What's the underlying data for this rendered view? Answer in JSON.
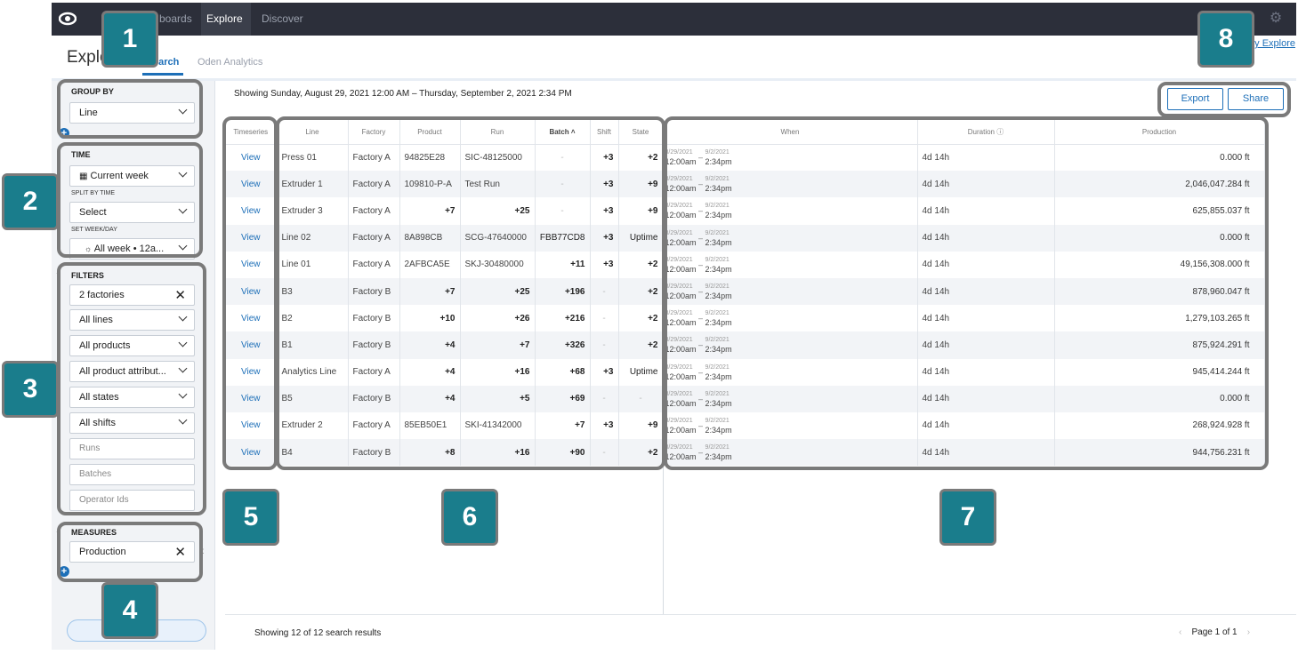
{
  "nav": {
    "items": [
      "Dashboards",
      "Explore",
      "Discover"
    ],
    "items_visible": [
      "boards",
      "Explore",
      "Discover"
    ]
  },
  "header": {
    "title": "Explore",
    "title_visible": "Explo",
    "tabs": [
      "Search",
      "Oden Analytics"
    ],
    "tabs_visible": [
      "earch",
      "Oden Analytics"
    ],
    "help_link": "y Explore"
  },
  "sidebar": {
    "group_by": {
      "title": "GROUP BY",
      "value": "Line"
    },
    "time": {
      "title": "TIME",
      "range": "Current week",
      "split_label": "SPLIT BY TIME",
      "split_value": "Select",
      "weekday_label": "SET WEEK/DAY",
      "weekday_value": "All week • 12a..."
    },
    "filters": {
      "title": "FILTERS",
      "factories": "2 factories",
      "lines": "All lines",
      "products": "All products",
      "product_attributes": "All product attribut...",
      "states": "All states",
      "shifts": "All shifts",
      "runs_placeholder": "Runs",
      "batches_placeholder": "Batches",
      "operators_placeholder": "Operator Ids"
    },
    "measures": {
      "title": "MEASURES",
      "value": "Production"
    }
  },
  "main": {
    "showing": "Showing Sunday, August 29, 2021 12:00 AM – Thursday, September 2, 2021 2:34 PM",
    "export": "Export",
    "share": "Share",
    "columns": [
      "Timeseries",
      "Line",
      "Factory",
      "Product",
      "Run",
      "Batch ˄",
      "Shift",
      "State",
      "When",
      "Duration ⓘ",
      "Production"
    ],
    "rows": [
      [
        "View",
        "Press 01",
        "Factory A",
        "94825E28",
        "SIC-48125000",
        "-",
        "+3",
        "+2",
        "8/29/2021",
        "12:00am",
        "9/2/2021",
        "2:34pm",
        "4d 14h",
        "0.000 ft"
      ],
      [
        "View",
        "Extruder 1",
        "Factory A",
        "109810-P-A",
        "Test Run",
        "-",
        "+3",
        "+9",
        "8/29/2021",
        "12:00am",
        "9/2/2021",
        "2:34pm",
        "4d 14h",
        "2,046,047.284 ft"
      ],
      [
        "View",
        "Extruder 3",
        "Factory A",
        "+7",
        "+25",
        "-",
        "+3",
        "+9",
        "8/29/2021",
        "12:00am",
        "9/2/2021",
        "2:34pm",
        "4d 14h",
        "625,855.037 ft"
      ],
      [
        "View",
        "Line 02",
        "Factory A",
        "8A898CB",
        "SCG-47640000",
        "FBB77CD8",
        "+3",
        "Uptime",
        "8/29/2021",
        "12:00am",
        "9/2/2021",
        "2:34pm",
        "4d 14h",
        "0.000 ft"
      ],
      [
        "View",
        "Line 01",
        "Factory A",
        "2AFBCA5E",
        "SKJ-30480000",
        "+11",
        "+3",
        "+2",
        "8/29/2021",
        "12:00am",
        "9/2/2021",
        "2:34pm",
        "4d 14h",
        "49,156,308.000 ft"
      ],
      [
        "View",
        "B3",
        "Factory B",
        "+7",
        "+25",
        "+196",
        "-",
        "+2",
        "8/29/2021",
        "12:00am",
        "9/2/2021",
        "2:34pm",
        "4d 14h",
        "878,960.047 ft"
      ],
      [
        "View",
        "B2",
        "Factory B",
        "+10",
        "+26",
        "+216",
        "-",
        "+2",
        "8/29/2021",
        "12:00am",
        "9/2/2021",
        "2:34pm",
        "4d 14h",
        "1,279,103.265 ft"
      ],
      [
        "View",
        "B1",
        "Factory B",
        "+4",
        "+7",
        "+326",
        "-",
        "+2",
        "8/29/2021",
        "12:00am",
        "9/2/2021",
        "2:34pm",
        "4d 14h",
        "875,924.291 ft"
      ],
      [
        "View",
        "Analytics Line",
        "Factory A",
        "+4",
        "+16",
        "+68",
        "+3",
        "Uptime",
        "8/29/2021",
        "12:00am",
        "9/2/2021",
        "2:34pm",
        "4d 14h",
        "945,414.244 ft"
      ],
      [
        "View",
        "B5",
        "Factory B",
        "+4",
        "+5",
        "+69",
        "-",
        "-",
        "8/29/2021",
        "12:00am",
        "9/2/2021",
        "2:34pm",
        "4d 14h",
        "0.000 ft"
      ],
      [
        "View",
        "Extruder 2",
        "Factory A",
        "85EB50E1",
        "SKI-41342000",
        "+7",
        "+3",
        "+9",
        "8/29/2021",
        "12:00am",
        "9/2/2021",
        "2:34pm",
        "4d 14h",
        "268,924.928 ft"
      ],
      [
        "View",
        "B4",
        "Factory B",
        "+8",
        "+16",
        "+90",
        "-",
        "+2",
        "8/29/2021",
        "12:00am",
        "9/2/2021",
        "2:34pm",
        "4d 14h",
        "944,756.231 ft"
      ]
    ],
    "result_count": "Showing 12 of 12 search results",
    "page": "Page 1 of 1"
  },
  "callouts": [
    "1",
    "2",
    "3",
    "4",
    "5",
    "6",
    "7",
    "8"
  ],
  "colors": {
    "accent": "#1d6fb8",
    "badge": "#1a7d8c",
    "nav": "#2c2f3a"
  }
}
